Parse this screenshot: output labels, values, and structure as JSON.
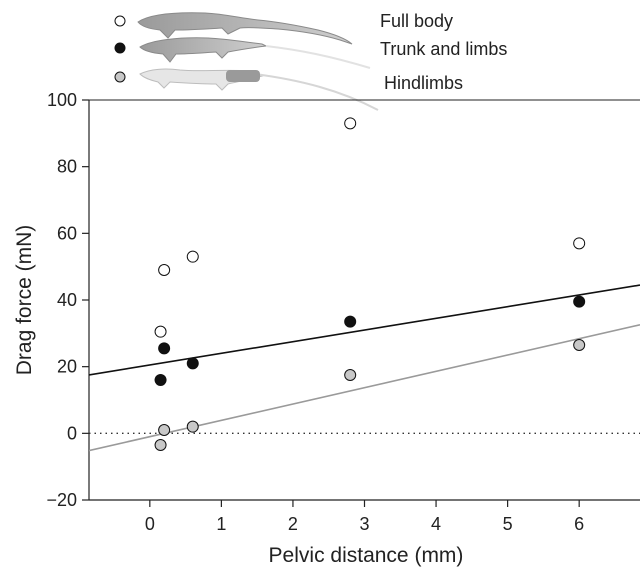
{
  "chart_data": {
    "type": "scatter",
    "xlabel": "Pelvic distance (mm)",
    "ylabel": "Drag force (mN)",
    "xlim": [
      -0.85,
      6.85
    ],
    "ylim": [
      -20,
      100
    ],
    "xticks": [
      0,
      1,
      2,
      3,
      4,
      5,
      6
    ],
    "yticks": [
      -20,
      0,
      20,
      40,
      60,
      80,
      100
    ],
    "x_tick_labels": [
      "0",
      "1",
      "2",
      "3",
      "4",
      "5",
      "6"
    ],
    "y_tick_labels": [
      "−20",
      "0",
      "20",
      "40",
      "60",
      "80",
      "100"
    ],
    "grid": false,
    "legend_position": "top-left",
    "reference_line": {
      "y": 0,
      "style": "dotted"
    },
    "series": [
      {
        "name": "Full body",
        "marker": "open-circle",
        "color": "#ffffff",
        "x": [
          0.15,
          0.2,
          0.6,
          2.8,
          6.0
        ],
        "y": [
          30.5,
          49,
          53,
          93,
          57
        ]
      },
      {
        "name": "Trunk and limbs",
        "marker": "filled-circle",
        "color": "#111111",
        "x": [
          0.15,
          0.2,
          0.6,
          2.8,
          6.0
        ],
        "y": [
          16,
          25.5,
          21,
          33.5,
          39.5
        ],
        "fit": {
          "slope": 3.5,
          "intercept": 20.5,
          "color": "#111111"
        }
      },
      {
        "name": "Hindlimbs",
        "marker": "grey-circle",
        "color": "#c8c8c8",
        "x": [
          0.15,
          0.2,
          0.6,
          2.8,
          6.0
        ],
        "y": [
          -3.5,
          1,
          2,
          17.5,
          26.5
        ],
        "fit": {
          "slope": 4.9,
          "intercept": -1,
          "color": "#9a9a9a"
        }
      }
    ]
  }
}
